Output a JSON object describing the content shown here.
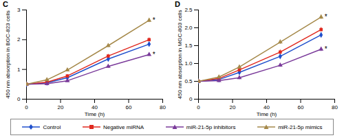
{
  "chart_data": [
    {
      "type": "line",
      "title": "C",
      "x_label": "Time (h)",
      "y_label": "450 nm absorption in BGC-823 cells",
      "x": [
        0,
        12,
        24,
        48,
        72
      ],
      "xlim": [
        0,
        80
      ],
      "xticks": [
        0,
        20,
        40,
        60,
        80
      ],
      "ylim": [
        0,
        3
      ],
      "yticks": [
        0,
        1,
        2,
        3
      ],
      "series": [
        {
          "name": "Control",
          "color": "#1f4fcc",
          "marker": "diamond",
          "values": [
            0.5,
            0.55,
            0.72,
            1.35,
            1.85
          ],
          "errors": [
            0.04,
            0.04,
            0.05,
            0.06,
            0.06
          ]
        },
        {
          "name": "Negative miRNA",
          "color": "#e0281e",
          "marker": "square",
          "values": [
            0.5,
            0.57,
            0.78,
            1.45,
            2.0
          ],
          "errors": [
            0.04,
            0.04,
            0.05,
            0.06,
            0.06
          ]
        },
        {
          "name": "miR-21-5p inhibitors",
          "color": "#7a3a9a",
          "marker": "triangle",
          "values": [
            0.5,
            0.52,
            0.62,
            1.1,
            1.5
          ],
          "errors": [
            0.04,
            0.04,
            0.05,
            0.06,
            0.06
          ]
        },
        {
          "name": "miR-21-5p mimics",
          "color": "#a5894a",
          "marker": "triangle",
          "values": [
            0.5,
            0.65,
            0.98,
            1.8,
            2.65
          ],
          "errors": [
            0.04,
            0.05,
            0.05,
            0.06,
            0.07
          ]
        }
      ],
      "annotations": [
        {
          "x": 72,
          "y": 2.65,
          "text": "*"
        },
        {
          "x": 72,
          "y": 1.5,
          "text": "*"
        }
      ]
    },
    {
      "type": "line",
      "title": "D",
      "x_label": "Time (h)",
      "y_label": "450 nm absorption in MGC-803 cells",
      "x": [
        0,
        12,
        24,
        48,
        72
      ],
      "xlim": [
        0,
        80
      ],
      "xticks": [
        0,
        20,
        40,
        60,
        80
      ],
      "ylim": [
        0,
        2.5
      ],
      "yticks": [
        0,
        0.5,
        {
          "value": 1,
          "label": "1.0"
        },
        1.5,
        {
          "value": 2,
          "label": "2.0"
        },
        2.5
      ],
      "series": [
        {
          "name": "Control",
          "color": "#1f4fcc",
          "marker": "diamond",
          "values": [
            0.5,
            0.55,
            0.75,
            1.2,
            1.8
          ],
          "errors": [
            0.03,
            0.04,
            0.05,
            0.06,
            0.06
          ]
        },
        {
          "name": "Negative miRNA",
          "color": "#e0281e",
          "marker": "square",
          "values": [
            0.5,
            0.58,
            0.82,
            1.32,
            1.95
          ],
          "errors": [
            0.03,
            0.04,
            0.05,
            0.06,
            0.06
          ]
        },
        {
          "name": "miR-21-5p inhibitors",
          "color": "#7a3a9a",
          "marker": "triangle",
          "values": [
            0.5,
            0.52,
            0.6,
            0.95,
            1.4
          ],
          "errors": [
            0.03,
            0.04,
            0.05,
            0.05,
            0.06
          ]
        },
        {
          "name": "miR-21-5p mimics",
          "color": "#a5894a",
          "marker": "triangle",
          "values": [
            0.5,
            0.62,
            0.9,
            1.6,
            2.3
          ],
          "errors": [
            0.03,
            0.04,
            0.05,
            0.06,
            0.06
          ]
        }
      ],
      "annotations": [
        {
          "x": 72,
          "y": 2.3,
          "text": "*"
        },
        {
          "x": 72,
          "y": 1.4,
          "text": "*"
        }
      ]
    }
  ]
}
